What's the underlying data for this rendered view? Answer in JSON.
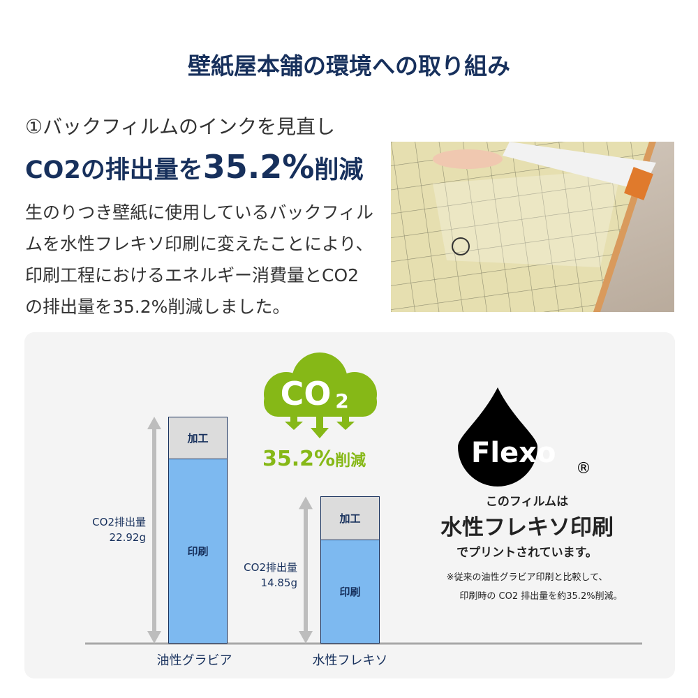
{
  "title": "壁紙屋本舗の環境への取り組み",
  "section": {
    "heading_line1": "①バックフィルムのインクを見直し",
    "heading_line2_prefix": "CO2の排出量を",
    "heading_line2_value": "35.2%",
    "heading_line2_suffix": "削減",
    "body": "生のりつき壁紙に使用しているバックフィルムを水性フレキソ印刷に変えたことにより、印刷工程におけるエネルギー消費量とCO2の排出量を35.2%削減しました。"
  },
  "cloud": {
    "label": "CO",
    "subscript": "2",
    "reduction_value": "35.2%",
    "reduction_suffix": "削減",
    "color": "#86b817"
  },
  "logo": {
    "text": "Flexo",
    "registered": "®"
  },
  "right_text": {
    "line1": "このフィルムは",
    "line2": "水性フレキソ印刷",
    "line3": "でプリントされています。",
    "note1": "※従来の油性グラビア印刷と比較して、",
    "note2": "印刷時の CO2 排出量を約35.2%削減。"
  },
  "colors": {
    "navy": "#17305c",
    "printing": "#7db9f0",
    "processing": "#dcdcdc",
    "green": "#86b817"
  },
  "chart_data": {
    "type": "bar",
    "stacked": true,
    "categories": [
      "油性グラビア",
      "水性フレキソ"
    ],
    "series": [
      {
        "name": "印刷",
        "values": [
          18.7,
          10.5
        ]
      },
      {
        "name": "加工",
        "values": [
          4.2,
          4.35
        ]
      }
    ],
    "totals": [
      22.92,
      14.85
    ],
    "total_labels": [
      {
        "label": "CO2排出量",
        "value": "22.92g"
      },
      {
        "label": "CO2排出量",
        "value": "14.85g"
      }
    ],
    "ylim": [
      0,
      22.92
    ],
    "grid": false,
    "legend": "none"
  }
}
